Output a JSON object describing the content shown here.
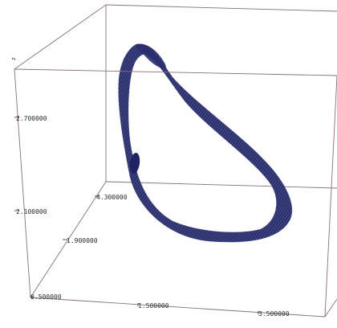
{
  "chart_data": {
    "type": "scatter",
    "projection": "3d",
    "title": "",
    "axes": {
      "z": {
        "label": "z",
        "ticks": [
          {
            "value": 2.7,
            "label": "2.700000"
          },
          {
            "value": 2.1,
            "label": "2.100000"
          }
        ]
      },
      "y": {
        "ticks": [
          {
            "value": 4.3,
            "label": "4.300000"
          },
          {
            "value": 1.9,
            "label": "1.900000"
          }
        ]
      },
      "x": {
        "ticks": [
          {
            "value": 0.5,
            "label": "0.500000"
          },
          {
            "value": 1.5,
            "label": "1.500000"
          },
          {
            "value": 3.5,
            "label": "3.500000"
          }
        ]
      }
    },
    "series": [
      {
        "kind": "attractor-band",
        "color_dark": "#2a2f6e",
        "color_light": "#c6c9e0"
      },
      {
        "kind": "fixed-point-blob",
        "color": "#1f2364"
      }
    ],
    "box_color": "#8a6e7c",
    "grid": false
  }
}
